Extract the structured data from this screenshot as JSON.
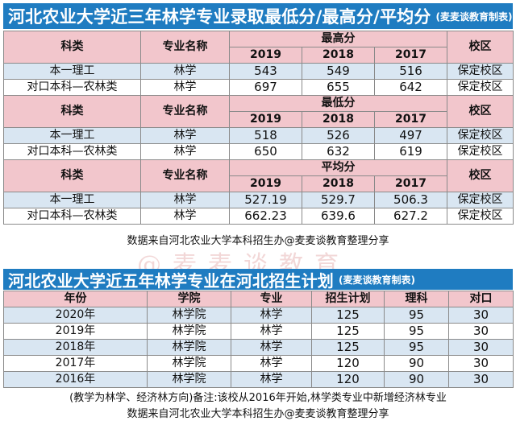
{
  "title1": {
    "main": "河北农业大学近三年林学专业录取最低分/最高分/平均分",
    "sub": "(麦麦谈教育制表)"
  },
  "score_header": {
    "category": "科类",
    "major": "专业名称",
    "years": [
      "2019",
      "2018",
      "2017"
    ],
    "campus": "校区"
  },
  "sections": [
    {
      "label": "最高分",
      "rows": [
        {
          "category": "本一理工",
          "major": "林学",
          "scores": [
            "543",
            "549",
            "516"
          ],
          "campus": "保定校区"
        },
        {
          "category": "对口本科—农林类",
          "major": "林学",
          "scores": [
            "697",
            "655",
            "642"
          ],
          "campus": "保定校区"
        }
      ]
    },
    {
      "label": "最低分",
      "rows": [
        {
          "category": "本一理工",
          "major": "林学",
          "scores": [
            "518",
            "526",
            "497"
          ],
          "campus": "保定校区"
        },
        {
          "category": "对口本科—农林类",
          "major": "林学",
          "scores": [
            "650",
            "632",
            "619"
          ],
          "campus": "保定校区"
        }
      ]
    },
    {
      "label": "平均分",
      "rows": [
        {
          "category": "本一理工",
          "major": "林学",
          "scores": [
            "527.19",
            "529.7",
            "506.3"
          ],
          "campus": "保定校区"
        },
        {
          "category": "对口本科—农林类",
          "major": "林学",
          "scores": [
            "662.23",
            "639.6",
            "627.2"
          ],
          "campus": "保定校区"
        }
      ]
    }
  ],
  "source1": "数据来自河北农业大学本科招生办@麦麦谈教育整理分享",
  "watermark": "@麦麦谈教育",
  "title2": {
    "main": "河北农业大学近五年林学专业在河北招生计划",
    "sub": "(麦麦谈教育制表)"
  },
  "plan_header": [
    "年份",
    "学院",
    "专业",
    "招生计划",
    "理科",
    "对口"
  ],
  "plan_rows": [
    [
      "2020年",
      "林学院",
      "林学",
      "125",
      "95",
      "30"
    ],
    [
      "2019年",
      "林学院",
      "林学",
      "125",
      "95",
      "30"
    ],
    [
      "2018年",
      "林学院",
      "林学",
      "125",
      "95",
      "30"
    ],
    [
      "2017年",
      "林学院",
      "林学",
      "120",
      "90",
      "30"
    ],
    [
      "2016年",
      "林学院",
      "林学",
      "120",
      "90",
      "30"
    ]
  ],
  "note": "(教学为林学、经济林方向)备注:该校从2016年开始,林学类专业中新增经济林专业",
  "source2": "数据来自河北农业大学本科招生办@麦麦谈教育整理分享"
}
